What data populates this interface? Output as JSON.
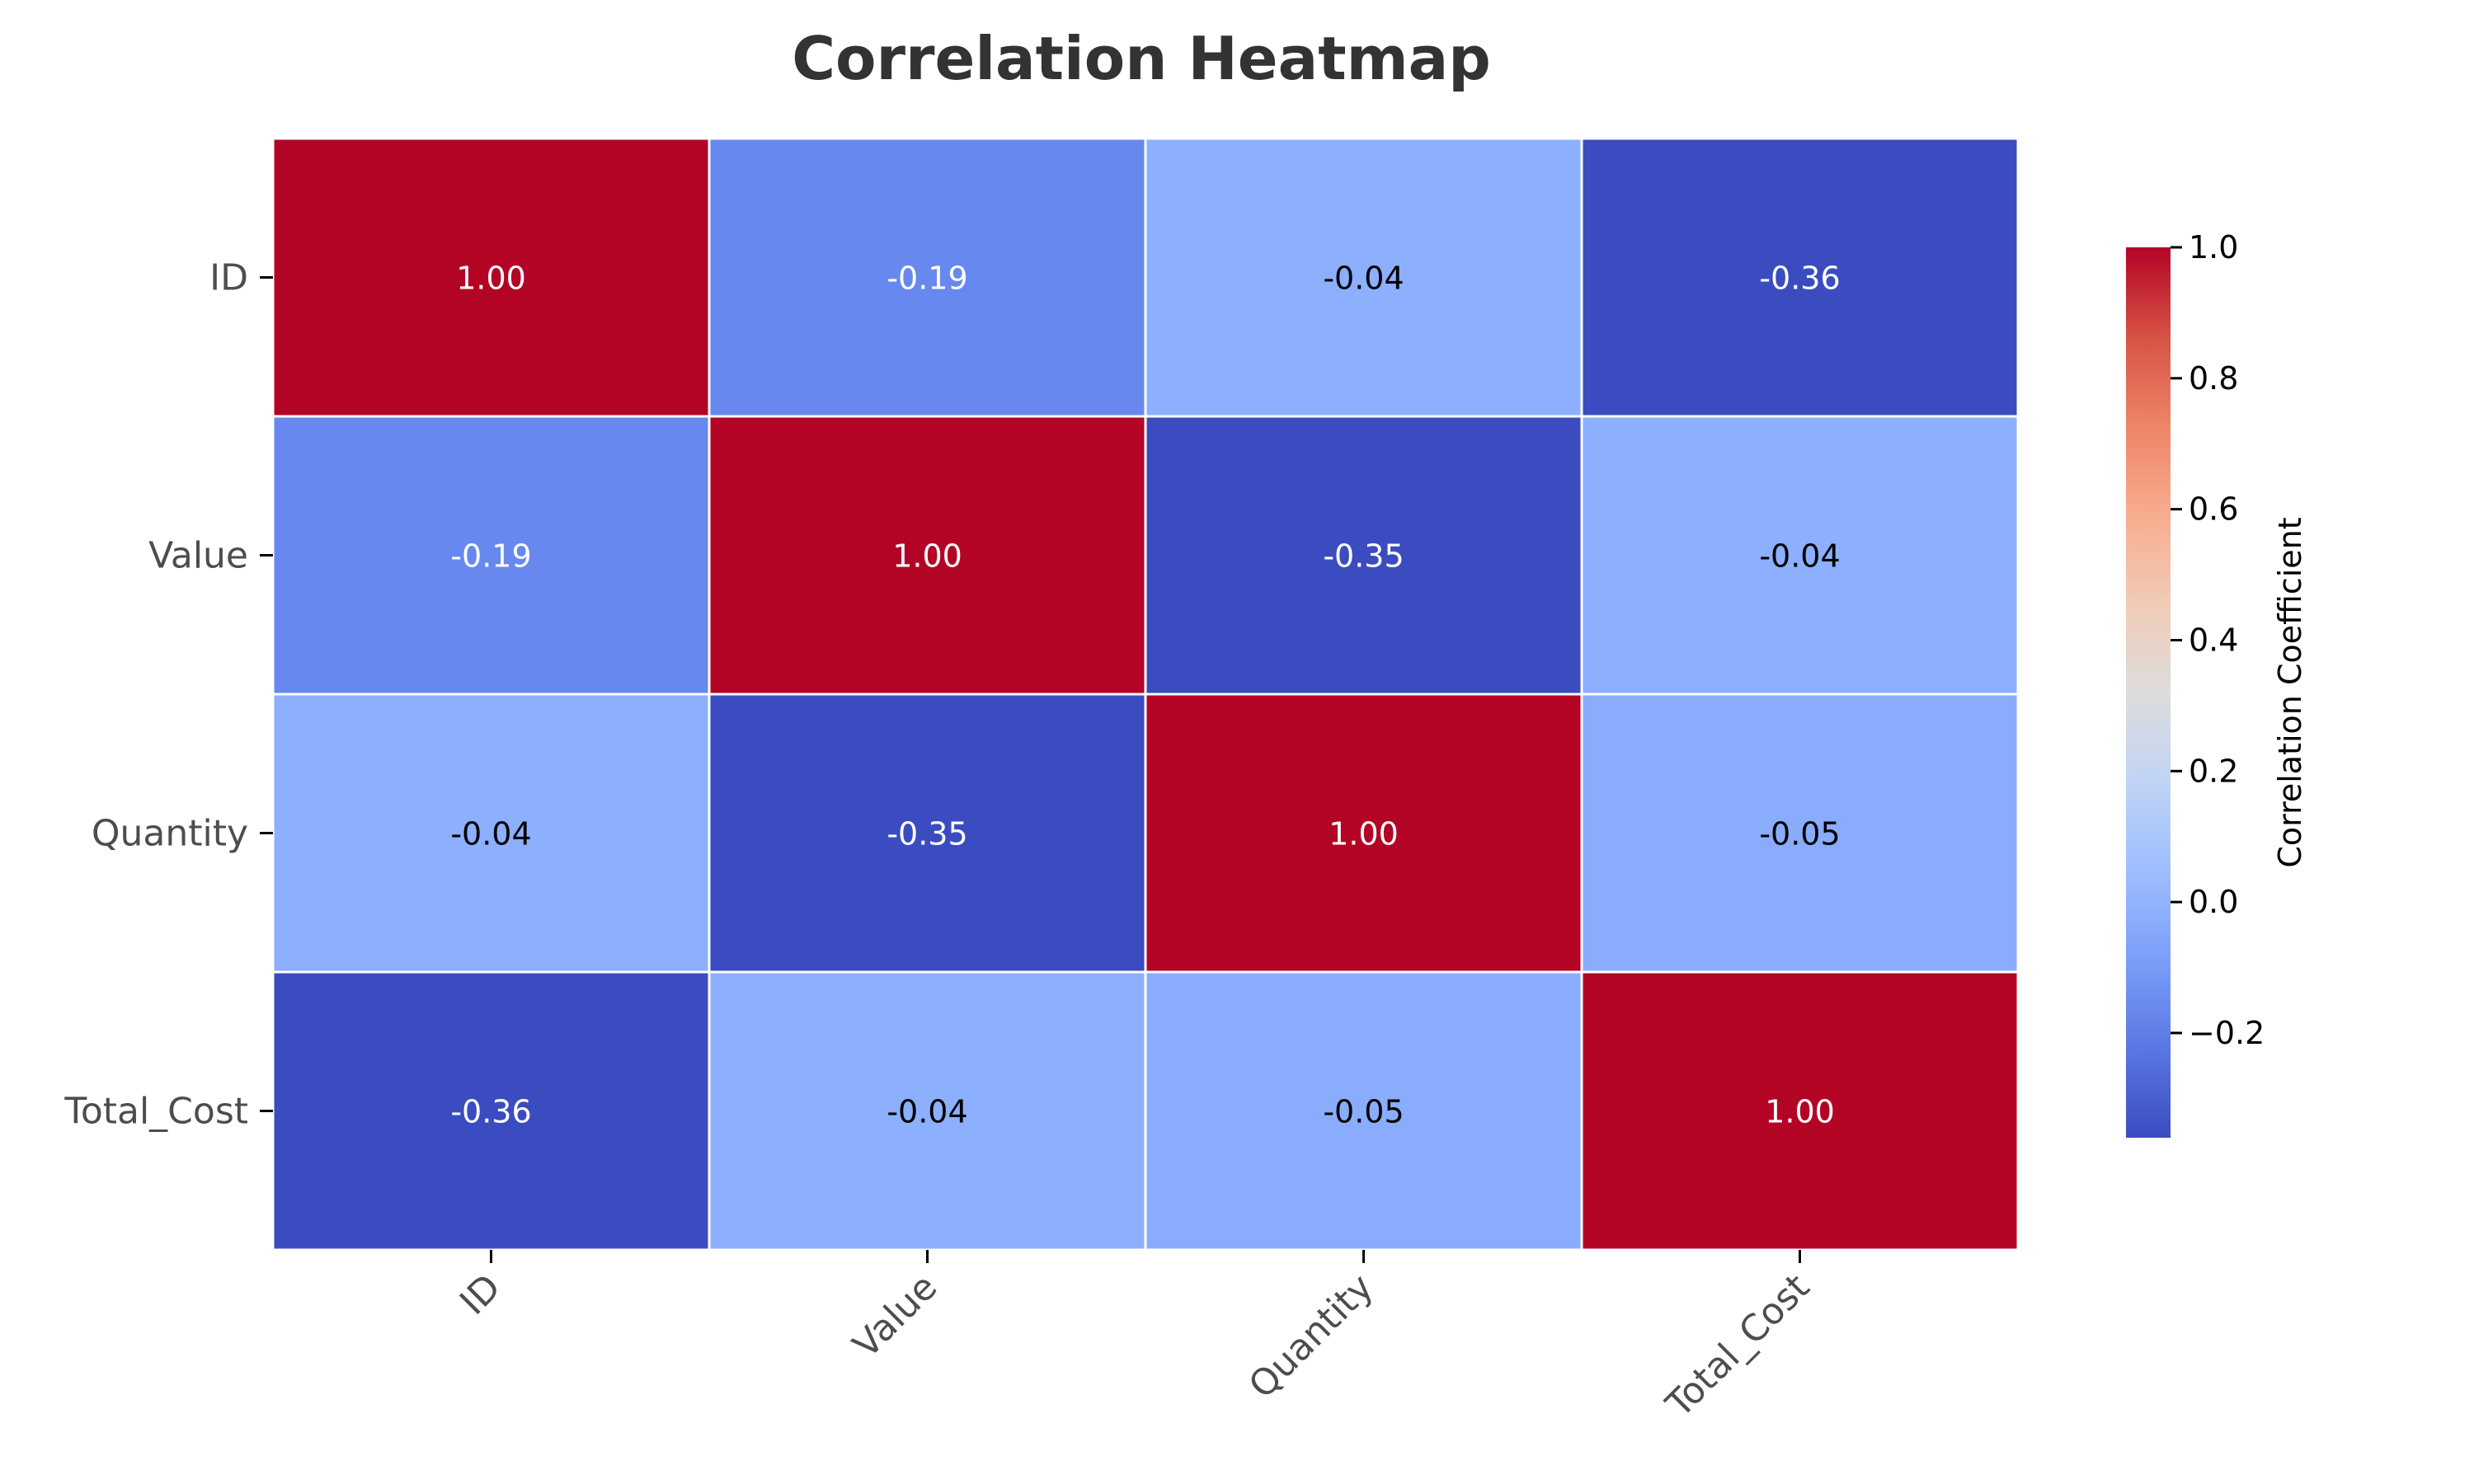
{
  "chart_data": {
    "type": "heatmap",
    "title": "Correlation Heatmap",
    "rows": [
      "ID",
      "Value",
      "Quantity",
      "Total_Cost"
    ],
    "columns": [
      "ID",
      "Value",
      "Quantity",
      "Total_Cost"
    ],
    "values": [
      [
        1.0,
        -0.19,
        -0.04,
        -0.36
      ],
      [
        -0.19,
        1.0,
        -0.35,
        -0.04
      ],
      [
        -0.04,
        -0.35,
        1.0,
        -0.05
      ],
      [
        -0.36,
        -0.04,
        -0.05,
        1.0
      ]
    ],
    "cell_labels": [
      [
        "1.00",
        "-0.19",
        "-0.04",
        "-0.36"
      ],
      [
        "-0.19",
        "1.00",
        "-0.35",
        "-0.04"
      ],
      [
        "-0.04",
        "-0.35",
        "1.00",
        "-0.05"
      ],
      [
        "-0.36",
        "-0.04",
        "-0.05",
        "1.00"
      ]
    ],
    "colormap": "coolwarm",
    "colorbar": {
      "label": "Correlation Coefficient",
      "range": [
        -0.36,
        1.0
      ],
      "ticks": [
        -0.2,
        0.0,
        0.2,
        0.4,
        0.6,
        0.8,
        1.0
      ],
      "tick_labels": [
        "−0.2",
        "0.0",
        "0.2",
        "0.4",
        "0.6",
        "0.8",
        "1.0"
      ]
    },
    "cell_colors": {
      "1.00": "#b40426",
      "-0.19": "#6788ee",
      "-0.04": "#8caffe",
      "-0.05": "#89acfd",
      "-0.35": "#3b4cc0",
      "-0.36": "#3b4cc0"
    }
  }
}
